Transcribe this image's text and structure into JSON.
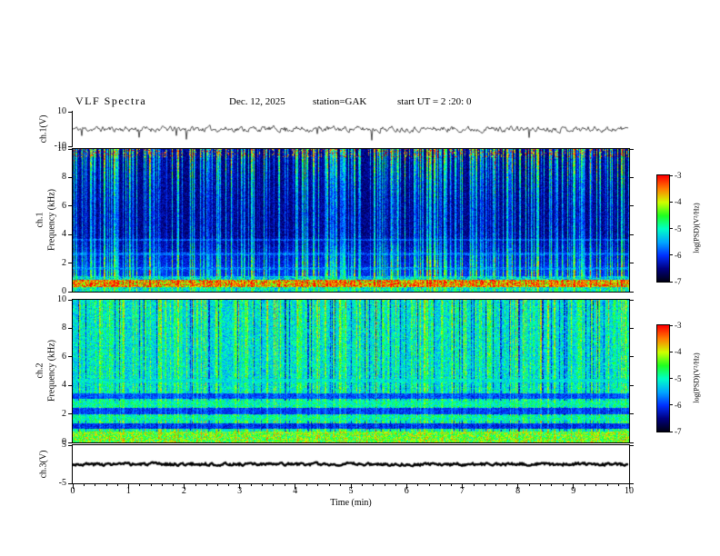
{
  "header": {
    "title": "VLF  Spectra",
    "date": "Dec. 12, 2025",
    "station": "station=GAK",
    "start_ut": "start UT =  2 :20: 0"
  },
  "x_axis": {
    "label": "Time (min)",
    "range": [
      0,
      10
    ],
    "ticks": [
      "0",
      "1",
      "2",
      "3",
      "4",
      "5",
      "6",
      "7",
      "8",
      "9",
      "10"
    ],
    "minor_per_major": 5
  },
  "colorbars": [
    {
      "label": "log(PSD)(V²/Hz)",
      "range": [
        -7,
        -3
      ],
      "ticks": [
        "-3",
        "-4",
        "-5",
        "-6",
        "-7"
      ]
    },
    {
      "label": "log(PSD)(V²/Hz)",
      "range": [
        -7,
        -3
      ],
      "ticks": [
        "-3",
        "-4",
        "-5",
        "-6",
        "-7"
      ]
    }
  ],
  "colormap": [
    "#000010",
    "#000080",
    "#0030ff",
    "#00a8ff",
    "#00ffc8",
    "#20ff20",
    "#d0ff00",
    "#ff8000",
    "#ff0000"
  ],
  "chart_data": [
    {
      "type": "line",
      "id": "ch1-waveform",
      "ylabel": "ch.1(V)",
      "ylim": [
        -10,
        10
      ],
      "yticks": [
        "10",
        "-10"
      ],
      "xlim": [
        0,
        10
      ],
      "signal": {
        "mean": 0,
        "noise_amplitude": 1.4,
        "spike_count": 14,
        "spike_min": -6.5,
        "spike_max": 2.5,
        "seed": 11
      }
    },
    {
      "type": "heatmap",
      "id": "ch1-spectrogram",
      "ylabel_lines": [
        "ch.1",
        "Frequency (kHz)"
      ],
      "ylim": [
        0,
        10
      ],
      "yticks": [
        "0",
        "2",
        "4",
        "6",
        "8",
        "10"
      ],
      "zlabel": "log(PSD)(V²/Hz)",
      "zlim": [
        -7,
        -3
      ],
      "texture": {
        "seed": 42,
        "base": 0.07,
        "noise": 0.12,
        "low_boost": 0.15,
        "streak_density": 0.6,
        "streak_strength": 1.0,
        "neg_streak_density": 0.0,
        "mid_dip": 0.55,
        "bands": [
          {
            "f_lo": 0.0,
            "f_hi": 0.3,
            "level": 0.45,
            "jitter": 0.3
          },
          {
            "f_lo": 0.3,
            "f_hi": 0.8,
            "level": 0.8,
            "jitter": 0.45
          },
          {
            "f_lo": 0.8,
            "f_hi": 1.1,
            "level": 0.4,
            "jitter": 0.3
          },
          {
            "f_lo": 1.55,
            "f_hi": 1.75,
            "level": 0.3,
            "jitter": 0.2
          },
          {
            "f_lo": 2.55,
            "f_hi": 2.75,
            "level": 0.28,
            "jitter": 0.2
          },
          {
            "f_lo": 3.55,
            "f_hi": 3.7,
            "level": 0.25,
            "jitter": 0.18
          }
        ],
        "top_speckle": {
          "f_min": 9.4,
          "prob": 0.3,
          "level": 0.85
        }
      }
    },
    {
      "type": "heatmap",
      "id": "ch2-spectrogram",
      "ylabel_lines": [
        "ch.2",
        "Frequency (kHz)"
      ],
      "ylim": [
        0,
        10
      ],
      "yticks": [
        "0",
        "2",
        "4",
        "6",
        "8",
        "10"
      ],
      "zlabel": "log(PSD)(V²/Hz)",
      "zlim": [
        -7,
        -3
      ],
      "texture": {
        "seed": 77,
        "base": 0.32,
        "noise": 0.25,
        "low_boost": 0.05,
        "streak_density": 0.5,
        "streak_strength": 0.45,
        "neg_streak_density": 0.1,
        "mid_dip": 0.25,
        "bands": [
          {
            "f_lo": 0.0,
            "f_hi": 0.75,
            "level": 0.65,
            "jitter": 0.35
          },
          {
            "f_lo": 0.95,
            "f_hi": 1.35,
            "level": 0.22,
            "jitter": 0.15
          },
          {
            "f_lo": 1.5,
            "f_hi": 1.9,
            "level": 0.5,
            "jitter": 0.25
          },
          {
            "f_lo": 2.0,
            "f_hi": 2.4,
            "level": 0.24,
            "jitter": 0.15
          },
          {
            "f_lo": 2.5,
            "f_hi": 2.95,
            "level": 0.5,
            "jitter": 0.25
          },
          {
            "f_lo": 3.05,
            "f_hi": 3.45,
            "level": 0.26,
            "jitter": 0.15
          },
          {
            "f_lo": 4.2,
            "f_hi": 4.45,
            "level": 0.45,
            "jitter": 0.2
          }
        ],
        "top_speckle": null
      }
    },
    {
      "type": "line",
      "id": "ch3-waveform",
      "ylabel": "ch.3(V)",
      "ylim": [
        -5,
        5
      ],
      "yticks": [
        "5",
        "-5"
      ],
      "xlim": [
        0,
        10
      ],
      "signal": {
        "mean": 0,
        "noise_amplitude": 0.3,
        "spike_count": 0,
        "spike_min": 0,
        "spike_max": 0,
        "seed": 3,
        "thick": true
      }
    }
  ]
}
